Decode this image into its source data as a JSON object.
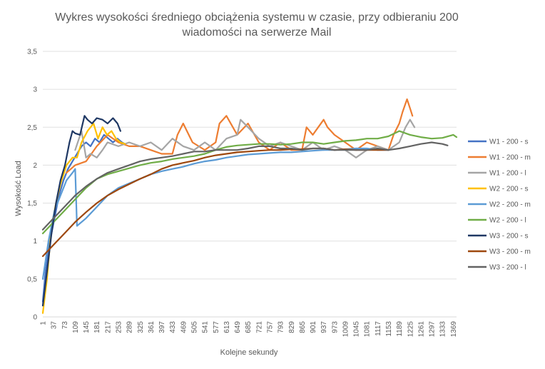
{
  "chart_data": {
    "type": "line",
    "title": [
      "Wykres wysokości średniego obciążenia systemu w czasie, przy odbieraniu 200",
      "wiadomości na serwerze Mail"
    ],
    "xlabel": "Kolejne sekundy",
    "ylabel": "Wysokość Load",
    "ylim": [
      0,
      3.5
    ],
    "xlim": [
      1,
      1380
    ],
    "y_ticks": [
      "0",
      "0,5",
      "1",
      "1,5",
      "2",
      "2,5",
      "3",
      "3,5"
    ],
    "x_ticks": [
      1,
      37,
      73,
      109,
      145,
      181,
      217,
      253,
      289,
      325,
      361,
      397,
      433,
      469,
      505,
      541,
      577,
      613,
      649,
      685,
      721,
      757,
      793,
      829,
      865,
      901,
      937,
      973,
      1009,
      1045,
      1081,
      1117,
      1153,
      1189,
      1225,
      1261,
      1297,
      1333,
      1369
    ],
    "grid": "horizontal",
    "legend_position": "right",
    "series": [
      {
        "name": "W1 - 200 - s",
        "color": "#4472c4",
        "x": [
          1,
          10,
          25,
          40,
          55,
          70,
          85,
          100,
          115,
          130,
          145,
          160,
          175,
          190,
          205,
          220,
          235,
          250,
          265,
          275
        ],
        "y": [
          0.2,
          0.6,
          1.0,
          1.3,
          1.6,
          1.8,
          1.95,
          2.05,
          2.15,
          2.25,
          2.3,
          2.25,
          2.35,
          2.3,
          2.4,
          2.35,
          2.3,
          2.35,
          2.3,
          2.28
        ]
      },
      {
        "name": "W1 - 200 - m",
        "color": "#ed7d31",
        "x": [
          80,
          109,
          145,
          181,
          217,
          253,
          289,
          325,
          361,
          397,
          433,
          450,
          469,
          500,
          541,
          577,
          590,
          613,
          649,
          685,
          721,
          757,
          793,
          829,
          865,
          880,
          901,
          937,
          950,
          973,
          1009,
          1045,
          1081,
          1117,
          1153,
          1170,
          1189,
          1200,
          1215,
          1225,
          1233
        ],
        "y": [
          1.9,
          2.0,
          2.05,
          2.25,
          2.4,
          2.3,
          2.25,
          2.25,
          2.2,
          2.15,
          2.15,
          2.4,
          2.55,
          2.3,
          2.2,
          2.3,
          2.55,
          2.65,
          2.4,
          2.55,
          2.3,
          2.2,
          2.3,
          2.2,
          2.2,
          2.5,
          2.4,
          2.6,
          2.5,
          2.4,
          2.3,
          2.2,
          2.3,
          2.25,
          2.2,
          2.4,
          2.55,
          2.7,
          2.87,
          2.75,
          2.65
        ]
      },
      {
        "name": "W1 - 200 - l",
        "color": "#a5a5a5",
        "x": [
          109,
          130,
          145,
          160,
          181,
          200,
          217,
          253,
          289,
          325,
          361,
          397,
          433,
          469,
          505,
          541,
          577,
          613,
          649,
          660,
          685,
          721,
          757,
          793,
          829,
          865,
          901,
          937,
          973,
          1009,
          1045,
          1081,
          1117,
          1153,
          1189,
          1210,
          1225,
          1240
        ],
        "y": [
          2.2,
          2.45,
          2.1,
          2.15,
          2.1,
          2.2,
          2.3,
          2.25,
          2.3,
          2.25,
          2.3,
          2.2,
          2.35,
          2.25,
          2.2,
          2.3,
          2.2,
          2.35,
          2.4,
          2.6,
          2.5,
          2.35,
          2.25,
          2.3,
          2.25,
          2.2,
          2.3,
          2.2,
          2.25,
          2.2,
          2.1,
          2.2,
          2.25,
          2.2,
          2.3,
          2.5,
          2.6,
          2.5
        ]
      },
      {
        "name": "W2 - 200 - s",
        "color": "#ffc000",
        "x": [
          1,
          15,
          30,
          45,
          60,
          80,
          100,
          115,
          130,
          150,
          170,
          185,
          200,
          215,
          230,
          245,
          260,
          275
        ],
        "y": [
          0.05,
          0.5,
          1.2,
          1.5,
          1.75,
          2.0,
          2.1,
          2.1,
          2.3,
          2.45,
          2.55,
          2.35,
          2.5,
          2.4,
          2.45,
          2.35,
          2.3,
          2.28
        ]
      },
      {
        "name": "W2 - 200 - m",
        "color": "#5b9bd5",
        "x": [
          1,
          20,
          40,
          60,
          80,
          100,
          109,
          115,
          145,
          181,
          217,
          253,
          289,
          325,
          361,
          397,
          433,
          469,
          505,
          541,
          577,
          613,
          649,
          685,
          721,
          757,
          793,
          829,
          865,
          901,
          937,
          973,
          1009,
          1045,
          1081,
          1117,
          1153
        ],
        "y": [
          0.5,
          1.0,
          1.4,
          1.6,
          1.8,
          1.9,
          1.95,
          1.2,
          1.3,
          1.45,
          1.6,
          1.7,
          1.76,
          1.82,
          1.88,
          1.92,
          1.95,
          1.98,
          2.02,
          2.05,
          2.07,
          2.1,
          2.12,
          2.14,
          2.15,
          2.16,
          2.17,
          2.17,
          2.18,
          2.19,
          2.2,
          2.2,
          2.21,
          2.22,
          2.22,
          2.2,
          2.2
        ]
      },
      {
        "name": "W2 - 200 - l",
        "color": "#70ad47",
        "x": [
          1,
          37,
          73,
          109,
          145,
          181,
          217,
          253,
          289,
          325,
          361,
          397,
          433,
          469,
          505,
          541,
          577,
          613,
          649,
          685,
          721,
          757,
          793,
          829,
          865,
          901,
          937,
          973,
          1009,
          1045,
          1081,
          1117,
          1153,
          1189,
          1225,
          1261,
          1297,
          1333,
          1369,
          1380
        ],
        "y": [
          1.1,
          1.25,
          1.4,
          1.55,
          1.7,
          1.82,
          1.88,
          1.92,
          1.96,
          2.0,
          2.03,
          2.05,
          2.08,
          2.1,
          2.12,
          2.15,
          2.2,
          2.24,
          2.26,
          2.27,
          2.28,
          2.28,
          2.27,
          2.28,
          2.3,
          2.3,
          2.28,
          2.3,
          2.32,
          2.33,
          2.35,
          2.35,
          2.38,
          2.45,
          2.4,
          2.37,
          2.35,
          2.36,
          2.4,
          2.37
        ]
      },
      {
        "name": "W3 - 200 - s",
        "color": "#1f3864",
        "x": [
          1,
          15,
          30,
          45,
          60,
          75,
          90,
          100,
          109,
          125,
          140,
          150,
          165,
          181,
          200,
          217,
          235,
          250,
          260
        ],
        "y": [
          0.15,
          0.6,
          1.1,
          1.5,
          1.8,
          2.0,
          2.3,
          2.45,
          2.42,
          2.4,
          2.65,
          2.6,
          2.55,
          2.62,
          2.6,
          2.55,
          2.62,
          2.55,
          2.45
        ]
      },
      {
        "name": "W3 - 200 - m",
        "color": "#9e480e",
        "x": [
          1,
          37,
          73,
          109,
          145,
          181,
          217,
          253,
          289,
          325,
          361,
          397,
          433,
          469,
          505,
          541,
          577,
          613,
          649,
          685,
          721,
          757,
          793,
          829,
          865,
          901,
          937,
          973,
          1009,
          1045,
          1081,
          1117,
          1153
        ],
        "y": [
          0.8,
          0.95,
          1.1,
          1.25,
          1.38,
          1.5,
          1.6,
          1.68,
          1.75,
          1.82,
          1.88,
          1.95,
          2.0,
          2.03,
          2.06,
          2.1,
          2.13,
          2.15,
          2.17,
          2.18,
          2.19,
          2.2,
          2.2,
          2.21,
          2.21,
          2.22,
          2.22,
          2.2,
          2.21,
          2.2,
          2.2,
          2.2,
          2.2
        ]
      },
      {
        "name": "W3 - 200 - l",
        "color": "#636363",
        "x": [
          1,
          37,
          73,
          109,
          145,
          181,
          217,
          253,
          289,
          325,
          361,
          397,
          433,
          469,
          505,
          541,
          577,
          613,
          649,
          685,
          721,
          757,
          793,
          829,
          865,
          901,
          937,
          973,
          1009,
          1045,
          1081,
          1117,
          1153,
          1189,
          1225,
          1261,
          1297,
          1333,
          1350
        ],
        "y": [
          1.15,
          1.3,
          1.45,
          1.6,
          1.72,
          1.82,
          1.9,
          1.95,
          2.0,
          2.05,
          2.08,
          2.1,
          2.12,
          2.15,
          2.18,
          2.18,
          2.2,
          2.2,
          2.2,
          2.22,
          2.25,
          2.25,
          2.22,
          2.22,
          2.2,
          2.22,
          2.22,
          2.2,
          2.2,
          2.2,
          2.2,
          2.22,
          2.2,
          2.22,
          2.25,
          2.28,
          2.3,
          2.28,
          2.26
        ]
      }
    ]
  }
}
